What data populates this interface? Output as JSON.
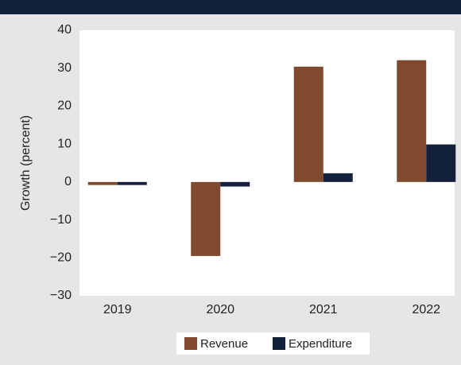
{
  "chart_data": {
    "type": "bar",
    "y_label": "Growth (percent)",
    "categories": [
      "2019",
      "2020",
      "2021",
      "2022"
    ],
    "series": [
      {
        "name": "Revenue",
        "color": "#7f4a2e",
        "values": [
          -0.8,
          -19.5,
          30.4,
          32.1
        ]
      },
      {
        "name": "Expenditure",
        "color": "#14213d",
        "values": [
          -0.8,
          -1.2,
          2.3,
          9.9
        ]
      }
    ],
    "ylim": [
      -30,
      40
    ],
    "yticks": [
      {
        "value": -30,
        "label": "−30"
      },
      {
        "value": -20,
        "label": "−20"
      },
      {
        "value": -10,
        "label": "−10"
      },
      0,
      10,
      20,
      30,
      40
    ],
    "grid": false
  }
}
